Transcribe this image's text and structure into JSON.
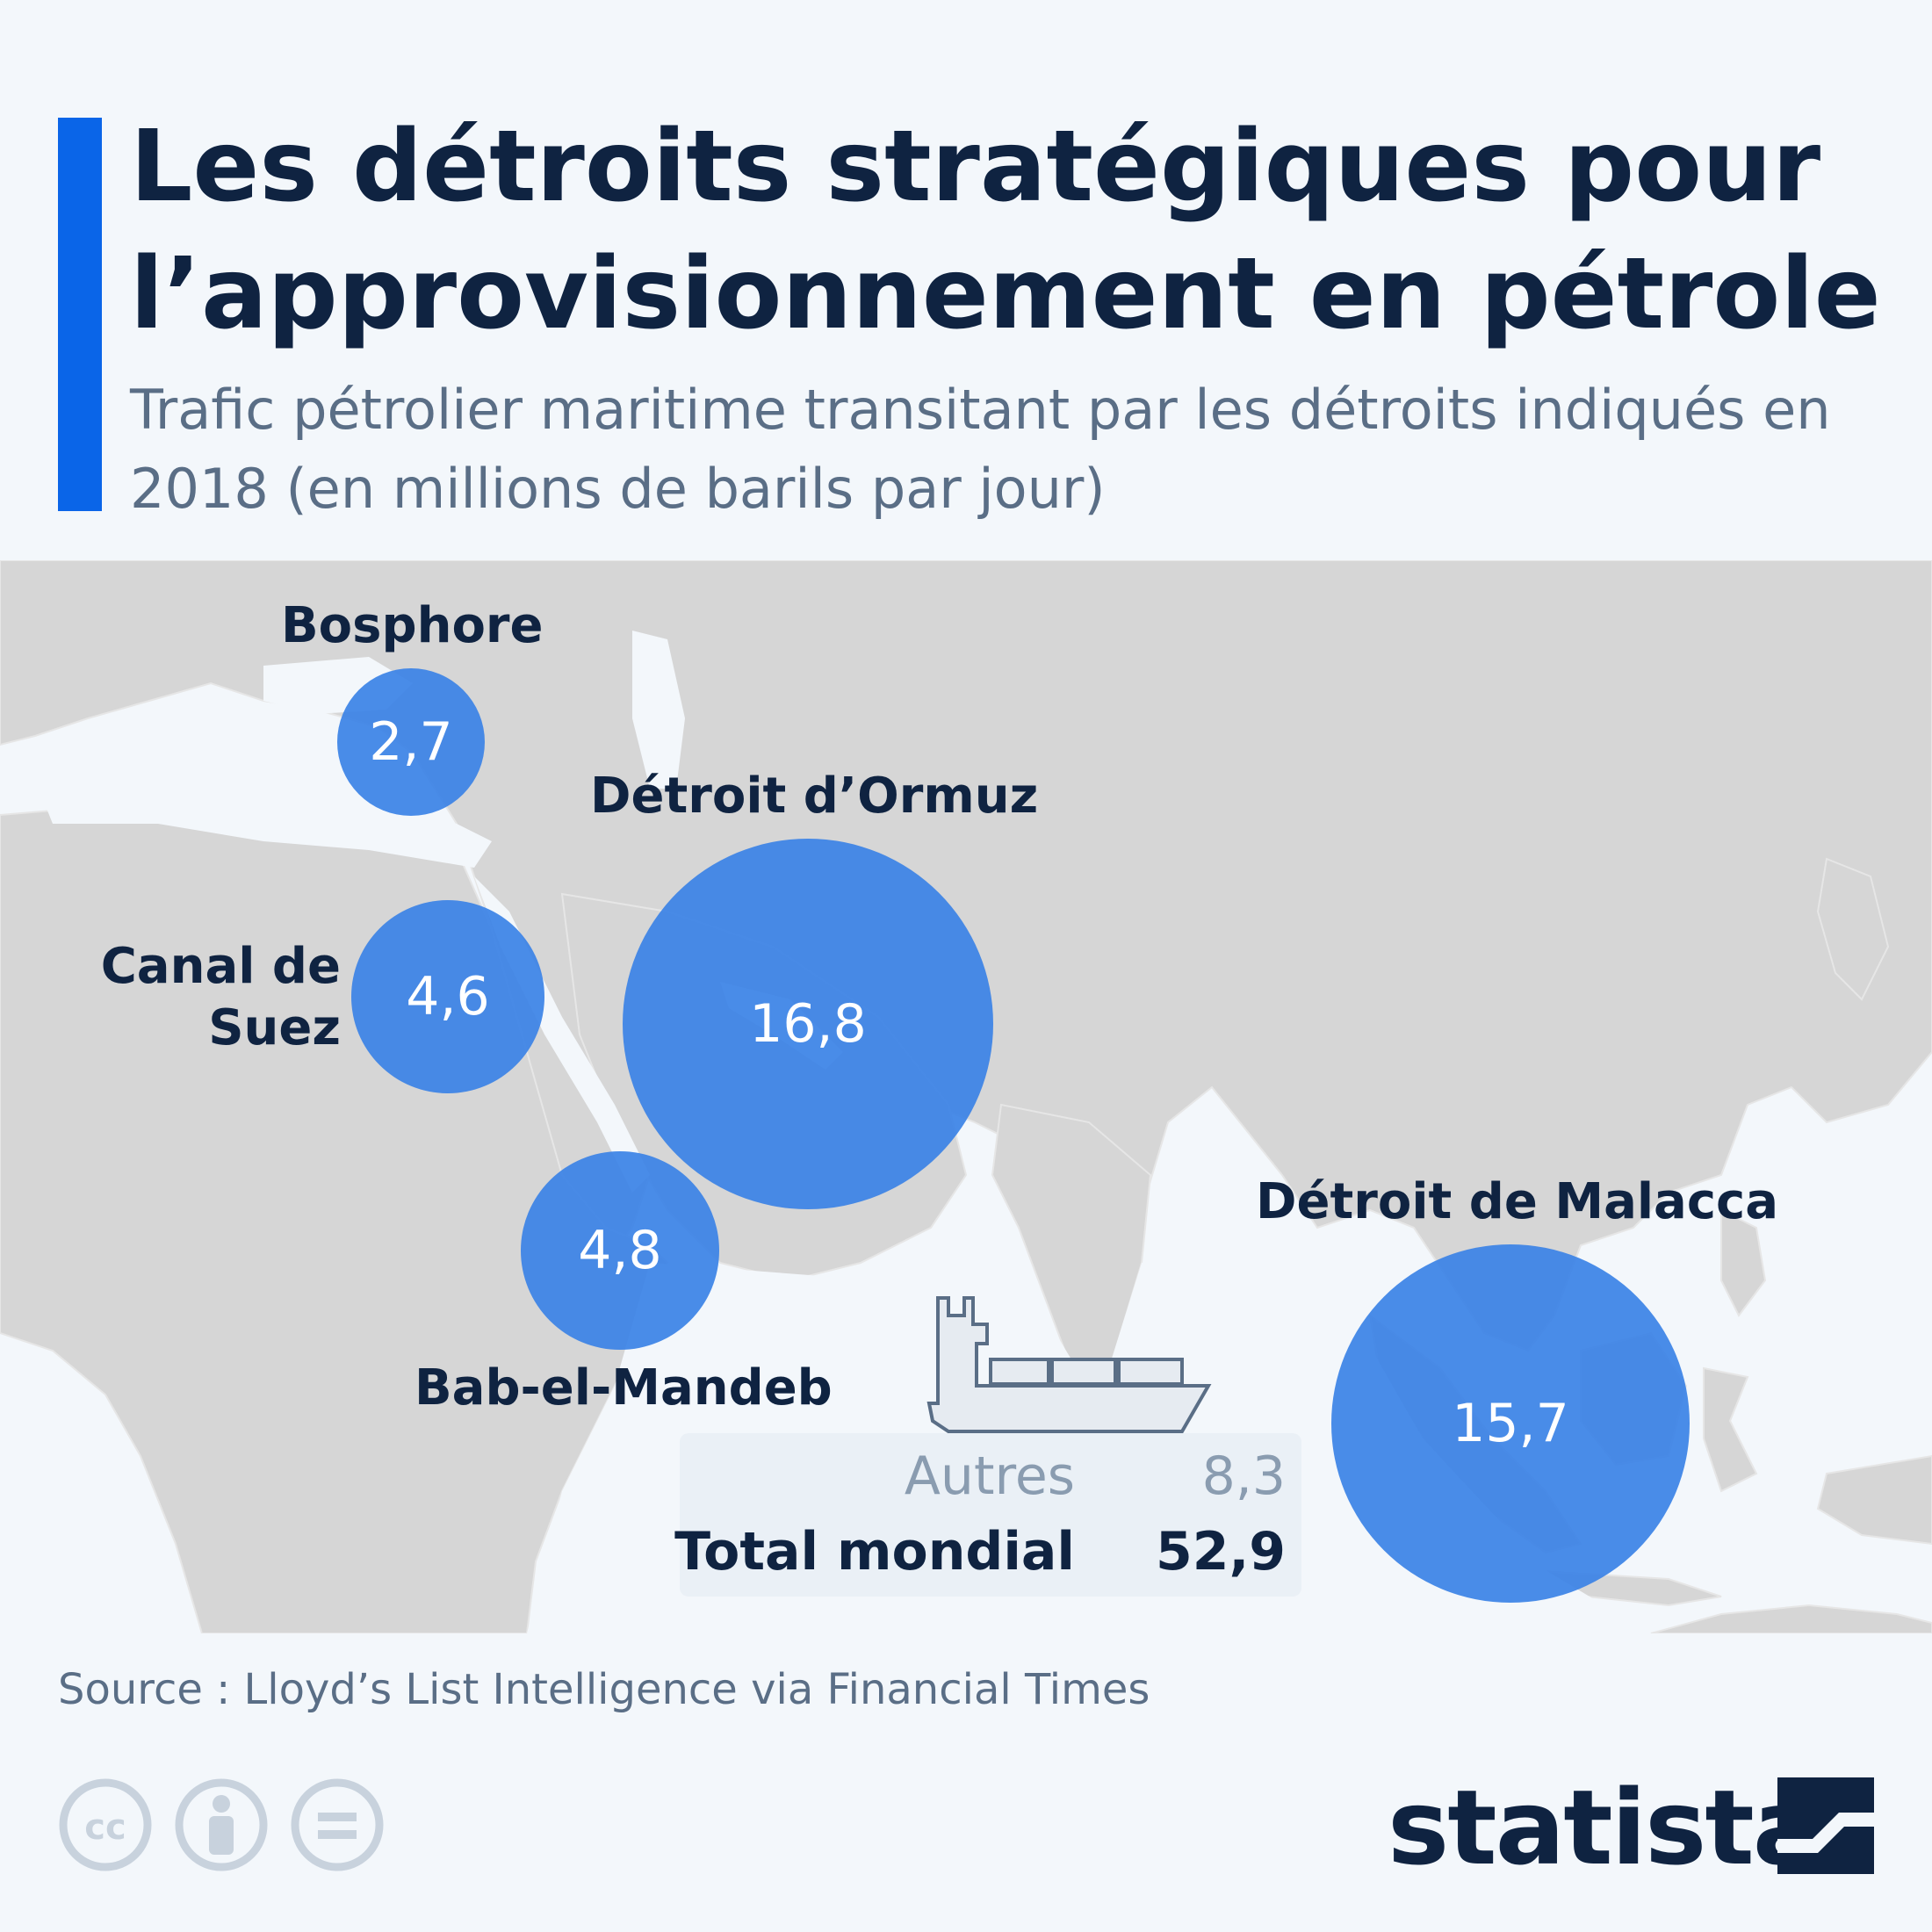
{
  "header": {
    "title": "Les détroits stratégiques pour l’approvisionnement en pétrole",
    "subtitle": "Trafic pétrolier maritime transitant par les détroits indiqués en 2018 (en millions de barils par jour)"
  },
  "straits": [
    {
      "key": "bosphore",
      "label": "Bosphore",
      "value": "2,7"
    },
    {
      "key": "ormuz",
      "label": "Détroit d’Ormuz",
      "value": "16,8"
    },
    {
      "key": "suez",
      "label": "Canal de Suez",
      "value": "4,6"
    },
    {
      "key": "bab",
      "label": "Bab-el-Mandeb",
      "value": "4,8"
    },
    {
      "key": "malacca",
      "label": "Détroit de Malacca",
      "value": "15,7"
    }
  ],
  "summary": {
    "other_label": "Autres",
    "other_value": "8,3",
    "total_label": "Total mondial",
    "total_value": "52,9"
  },
  "footer": {
    "source": "Source : Lloyd’s List Intelligence via Financial Times",
    "brand": "statista"
  },
  "colors": {
    "accent": "#0a65e8",
    "bubble": "#3b82e6",
    "land": "#d6d6d6",
    "title": "#0f2341"
  },
  "icons": [
    "tanker-ship-icon",
    "cc-icon",
    "by-icon",
    "nd-icon",
    "statista-logo-icon"
  ]
}
